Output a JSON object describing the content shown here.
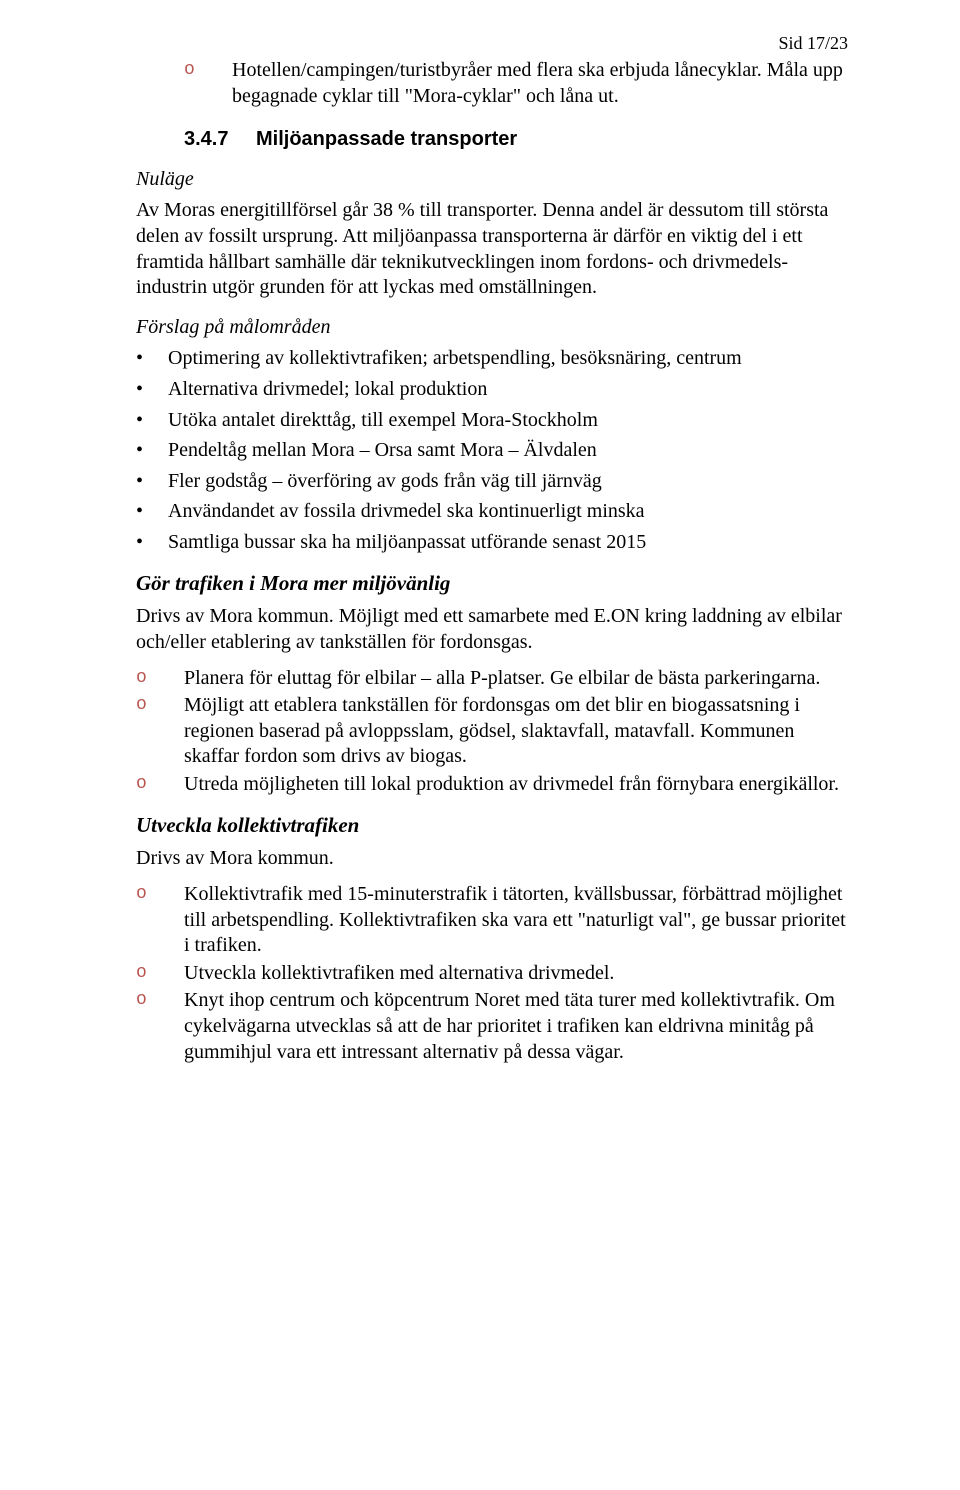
{
  "page_number": "Sid 17/23",
  "intro_item": "Hotellen/campingen/turistbyråer med flera ska erbjuda lånecyklar. Måla upp begagnade cyklar till \"Mora-cyklar\" och låna ut.",
  "section": {
    "number": "3.4.7",
    "title": "Miljöanpassade transporter"
  },
  "labels": {
    "nulage": "Nuläge",
    "forslag": "Förslag på målområden"
  },
  "nulage_para": "Av Moras energitillförsel går 38 % till transporter. Denna andel är dessutom till största delen av fossilt ursprung. Att miljöanpassa transporterna är därför en viktig del i ett framtida hållbart samhälle där teknikutvecklingen inom fordons- och drivmedels-industrin utgör grunden för att lyckas med omställningen.",
  "bullets": [
    "Optimering av kollektivtrafiken; arbetspendling, besöksnäring, centrum",
    "Alternativa drivmedel; lokal produktion",
    "Utöka antalet direkttåg, till exempel Mora-Stockholm",
    "Pendeltåg mellan Mora – Orsa samt Mora – Älvdalen",
    "Fler godståg – överföring av gods från väg till järnväg",
    "Användandet av fossila drivmedel ska kontinuerligt minska",
    "Samtliga bussar ska ha miljöanpassat utförande senast 2015"
  ],
  "block1": {
    "heading": "Gör trafiken i Mora mer miljövänlig",
    "lead": "Drivs av Mora kommun. Möjligt med ett samarbete med E.ON kring laddning av elbilar och/eller etablering av tankställen för fordonsgas.",
    "items": [
      "Planera för eluttag för elbilar – alla P-platser. Ge elbilar de bästa parkeringarna.",
      "Möjligt att etablera tankställen för fordonsgas om det blir en biogassatsning i regionen baserad på avloppsslam, gödsel, slaktavfall, matavfall. Kommunen skaffar fordon som drivs av biogas.",
      "Utreda möjligheten till lokal produktion av drivmedel från förnybara energikällor."
    ]
  },
  "block2": {
    "heading": "Utveckla kollektivtrafiken",
    "lead": "Drivs av Mora kommun.",
    "items": [
      "Kollektivtrafik med 15-minuterstrafik i tätorten, kvällsbussar, förbättrad möjlighet till arbetspendling. Kollektivtrafiken ska vara ett \"naturligt val\", ge bussar prioritet i trafiken.",
      "Utveckla kollektivtrafiken med alternativa drivmedel.",
      "Knyt ihop centrum och köpcentrum Noret med täta turer med kollektivtrafik. Om cykelvägarna utvecklas så att de har prioritet i trafiken kan eldrivna minitåg på gummihjul vara ett intressant alternativ på dessa vägar."
    ]
  }
}
